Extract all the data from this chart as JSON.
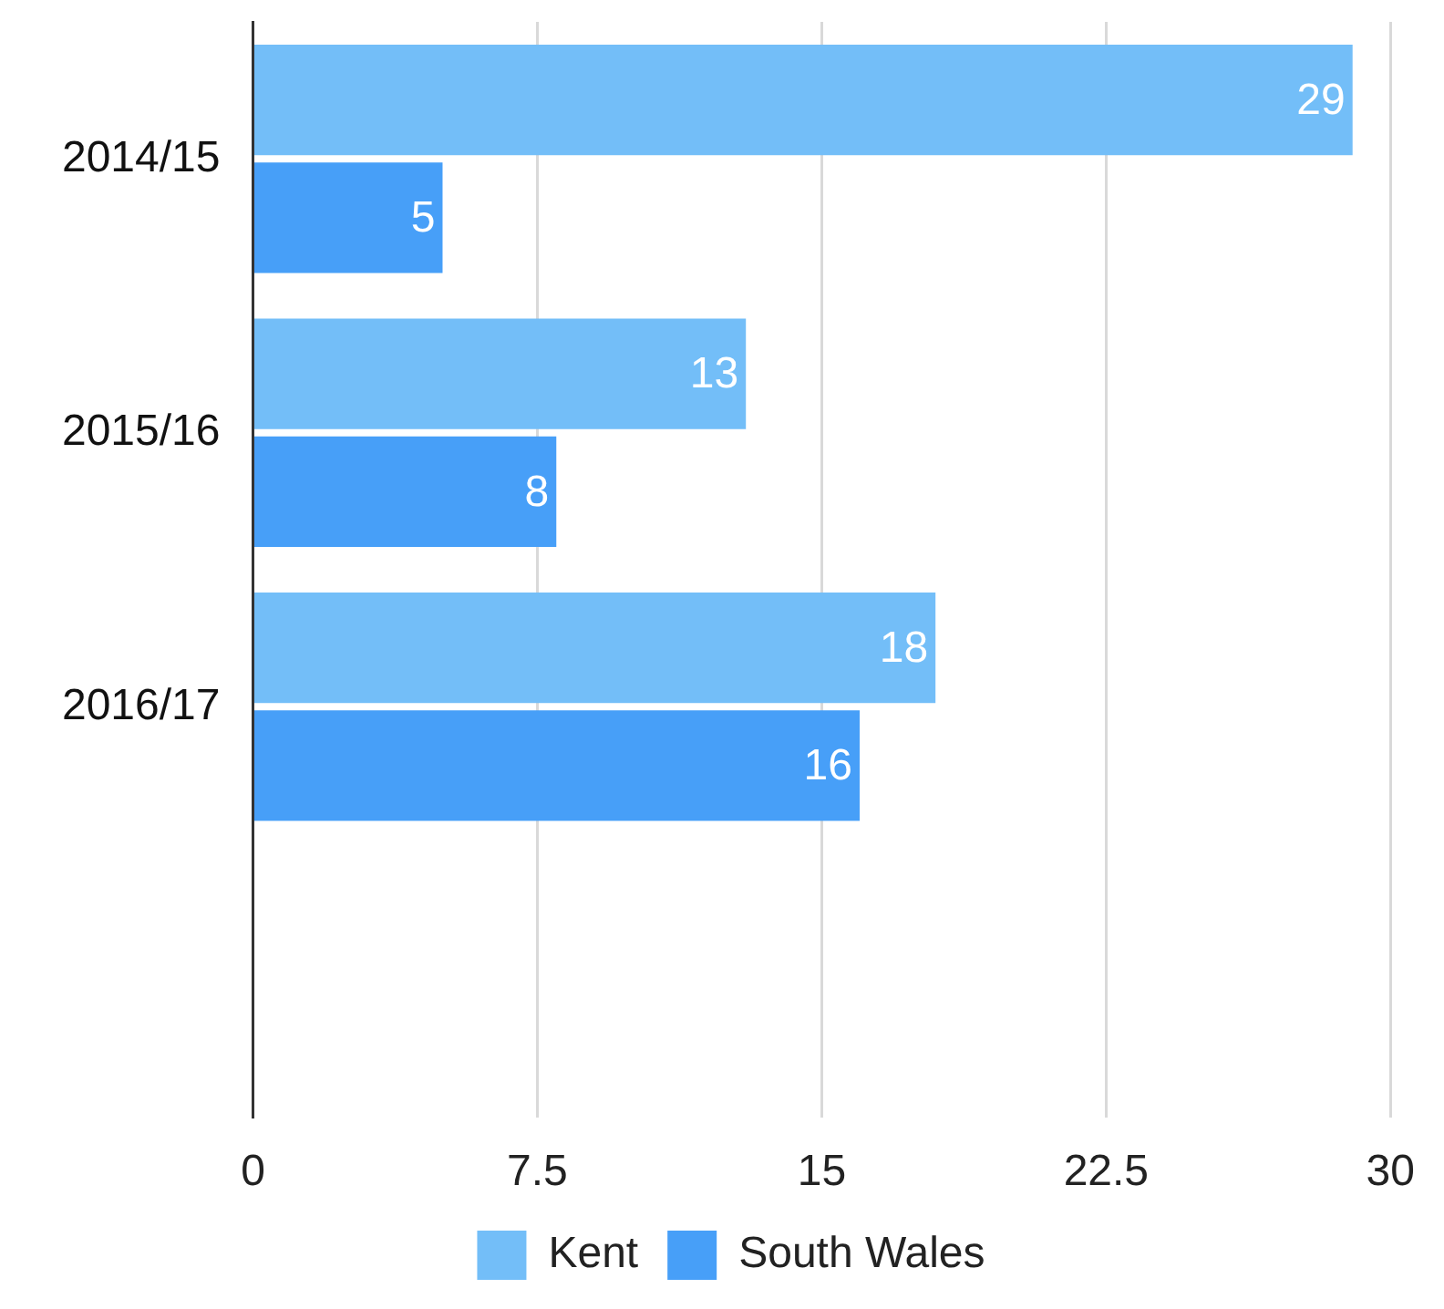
{
  "chart_data": {
    "type": "bar",
    "orientation": "horizontal",
    "categories": [
      "2014/15",
      "2015/16",
      "2016/17",
      null
    ],
    "series": [
      {
        "name": "Kent",
        "color": "#73bef8",
        "values": [
          29,
          13,
          18,
          null
        ]
      },
      {
        "name": "South Wales",
        "color": "#479ff8",
        "values": [
          5,
          8,
          16,
          null
        ]
      }
    ],
    "xlim": [
      0,
      30
    ],
    "xticks": [
      0,
      7.5,
      15,
      22.5,
      30
    ],
    "grid": "x",
    "legend": "bottom",
    "data_labels": true
  }
}
